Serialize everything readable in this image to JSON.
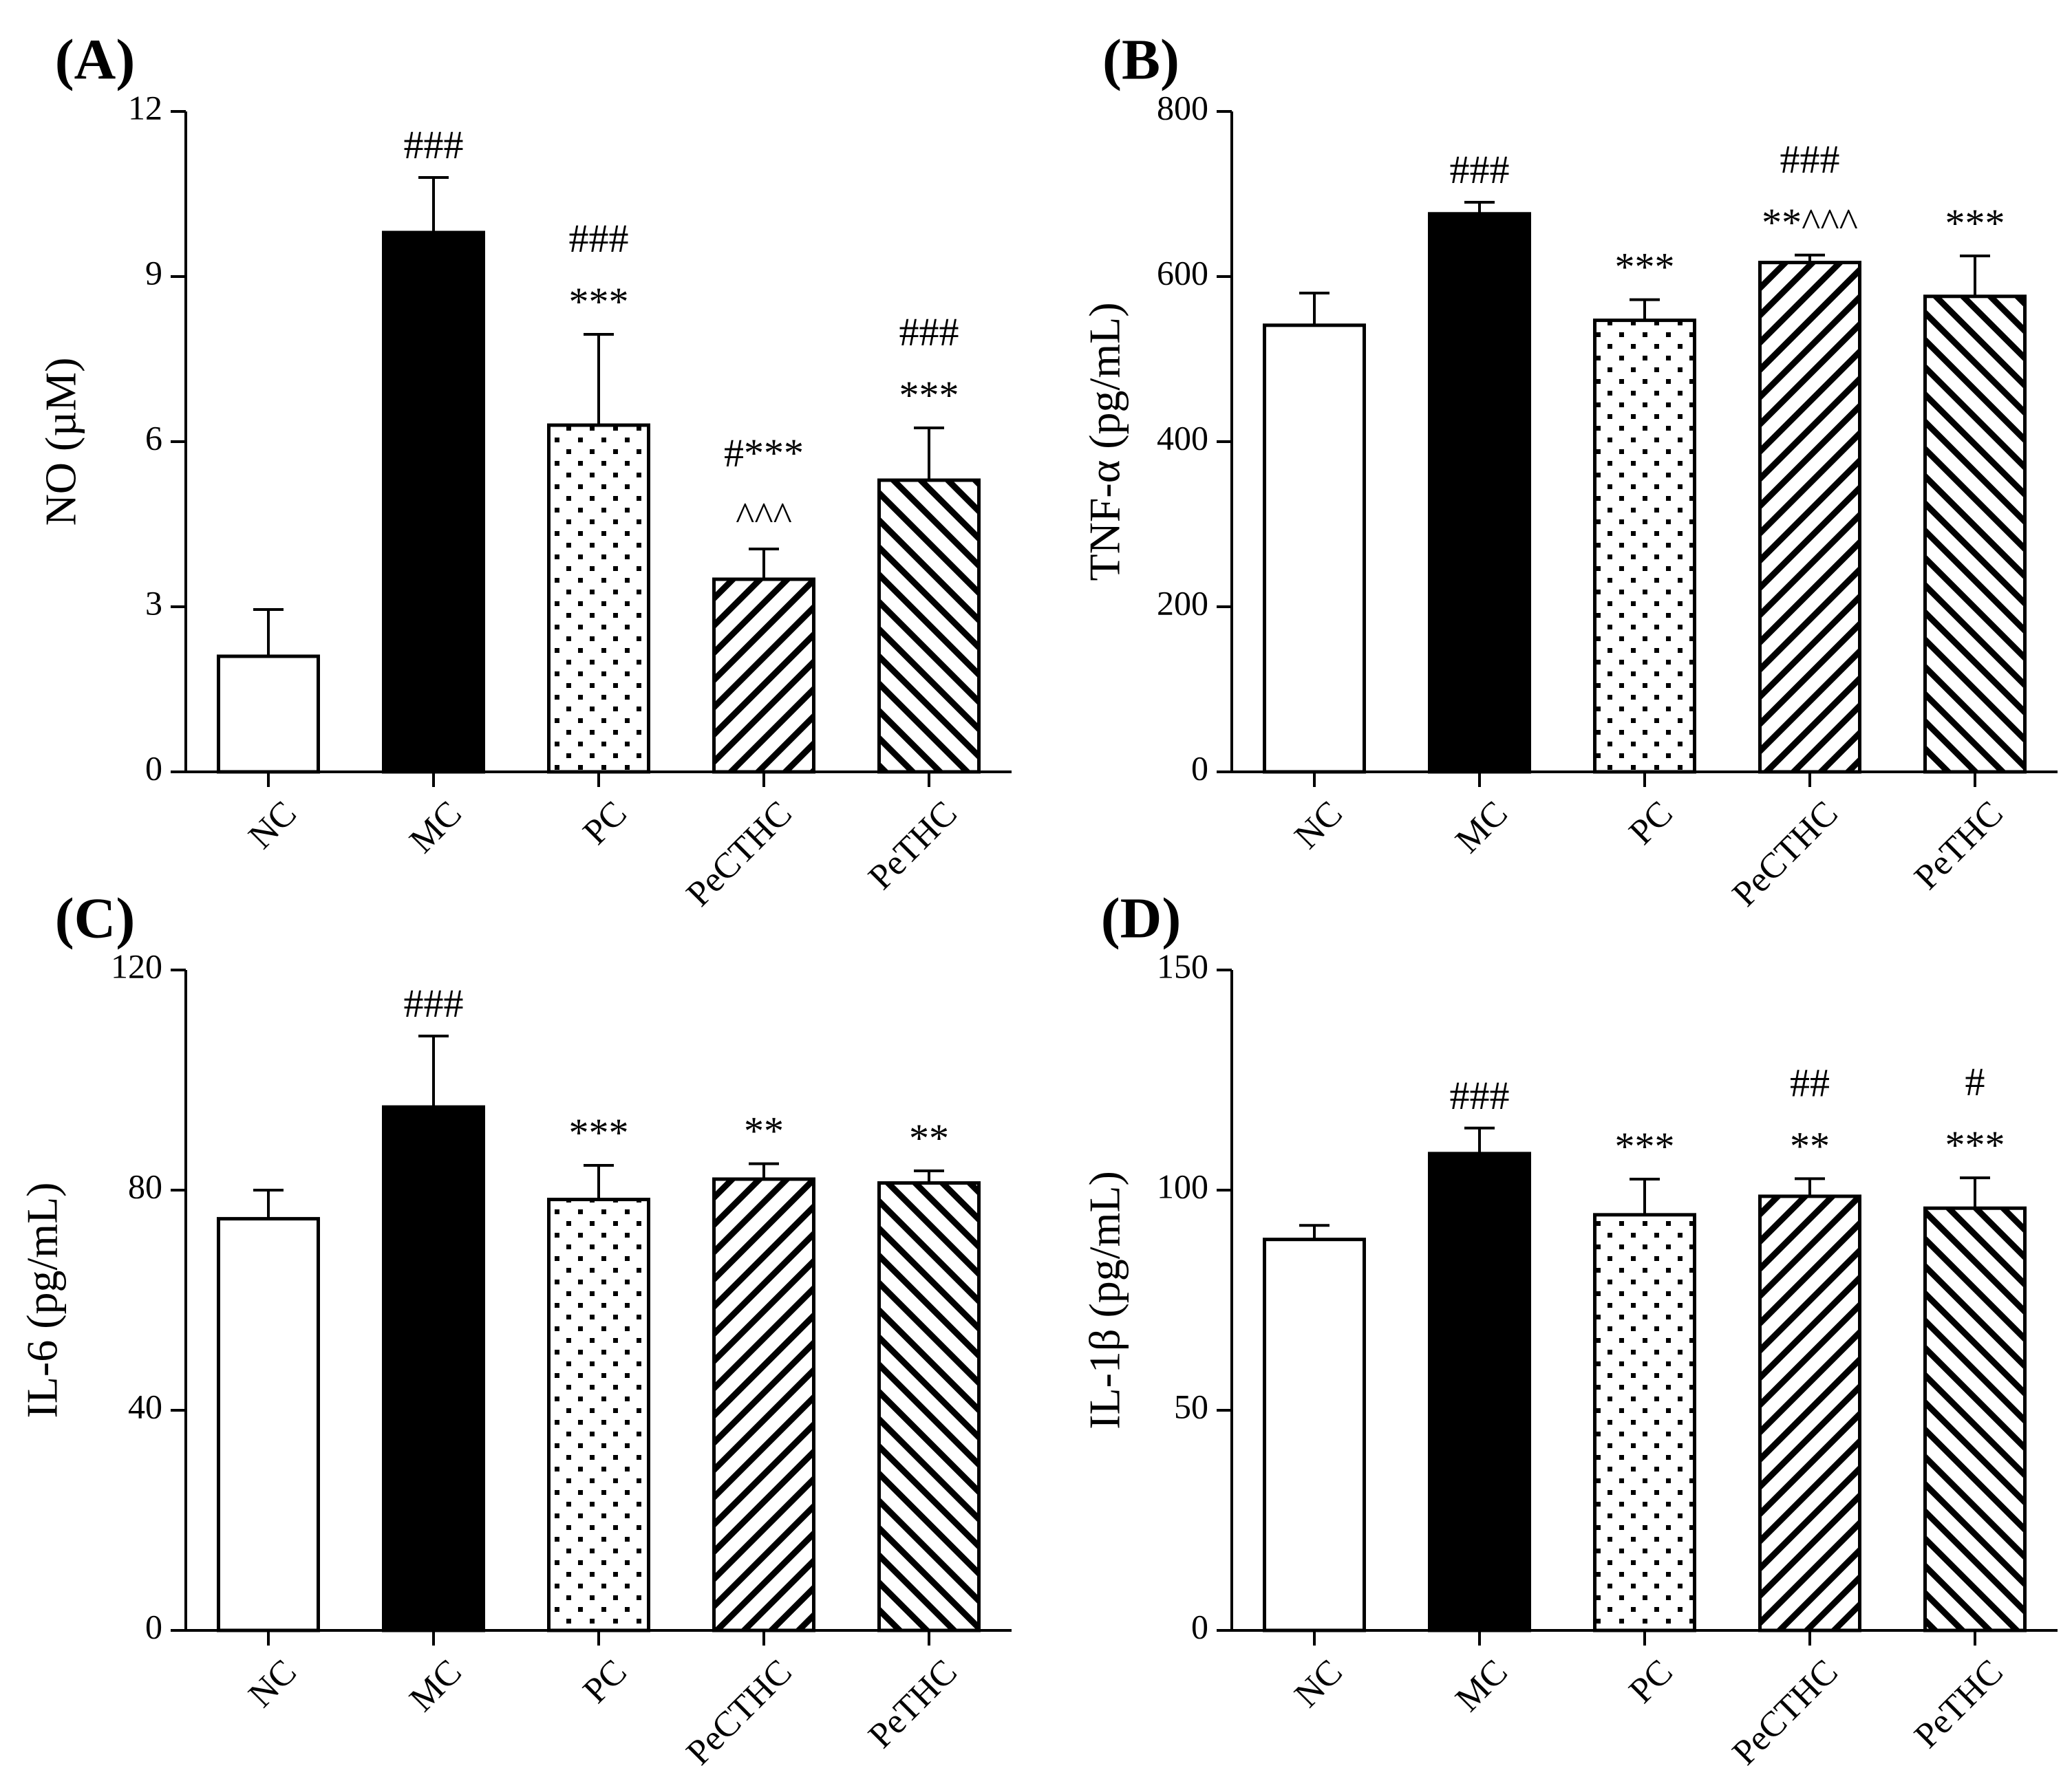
{
  "chart_data": [
    {
      "type": "bar",
      "panel_label": "(A)",
      "ylabel": "NO (µM)",
      "ylim": [
        0,
        12
      ],
      "yticks": [
        "0",
        "3",
        "6",
        "9",
        "12"
      ],
      "categories": [
        "NC",
        "MC",
        "PC",
        "PeCTHC",
        "PeTHC"
      ],
      "fills": [
        "white",
        "black",
        "dots",
        "hatch-right",
        "hatch-left"
      ],
      "values": [
        2.1,
        9.8,
        6.3,
        3.5,
        5.3
      ],
      "errors": [
        0.85,
        1.0,
        1.65,
        0.55,
        0.95
      ],
      "annotations": [
        [],
        [
          "###"
        ],
        [
          "###",
          "***"
        ],
        [
          "#***",
          "^^^"
        ],
        [
          "###",
          "***"
        ]
      ]
    },
    {
      "type": "bar",
      "panel_label": "(B)",
      "ylabel": "TNF-α (pg/mL)",
      "ylim": [
        0,
        800
      ],
      "yticks": [
        "0",
        "200",
        "400",
        "600",
        "800"
      ],
      "categories": [
        "NC",
        "MC",
        "PC",
        "PeCTHC",
        "PeTHC"
      ],
      "fills": [
        "white",
        "black",
        "dots",
        "hatch-right",
        "hatch-left"
      ],
      "values": [
        541,
        676,
        547,
        617,
        576
      ],
      "errors": [
        39,
        14,
        25,
        9,
        49
      ],
      "annotations": [
        [],
        [
          "###"
        ],
        [
          "***"
        ],
        [
          "###",
          "**^^^"
        ],
        [
          "***"
        ]
      ]
    },
    {
      "type": "bar",
      "panel_label": "(C)",
      "ylabel": "IL-6 (pg/mL)",
      "ylim": [
        0,
        120
      ],
      "yticks": [
        "0",
        "40",
        "80",
        "120"
      ],
      "categories": [
        "NC",
        "MC",
        "PC",
        "PeCTHC",
        "PeTHC"
      ],
      "fills": [
        "white",
        "black",
        "dots",
        "hatch-right",
        "hatch-left"
      ],
      "values": [
        74.8,
        95.1,
        78.3,
        82,
        81.3
      ],
      "errors": [
        5.2,
        12.9,
        6.2,
        2.8,
        2.2
      ],
      "annotations": [
        [],
        [
          "###"
        ],
        [
          "***"
        ],
        [
          "**"
        ],
        [
          "**"
        ]
      ]
    },
    {
      "type": "bar",
      "panel_label": "(D)",
      "ylabel": "IL-1β (pg/mL)",
      "ylim": [
        0,
        150
      ],
      "yticks": [
        "0",
        "50",
        "100",
        "150"
      ],
      "categories": [
        "NC",
        "MC",
        "PC",
        "PeCTHC",
        "PeTHC"
      ],
      "fills": [
        "white",
        "black",
        "dots",
        "hatch-right",
        "hatch-left"
      ],
      "values": [
        88.8,
        108.3,
        94.4,
        98.6,
        95.9
      ],
      "errors": [
        3.2,
        5.8,
        8.1,
        4,
        6.9
      ],
      "annotations": [
        [],
        [
          "###"
        ],
        [
          "***"
        ],
        [
          "##",
          "**"
        ],
        [
          "#",
          "***"
        ]
      ]
    }
  ]
}
